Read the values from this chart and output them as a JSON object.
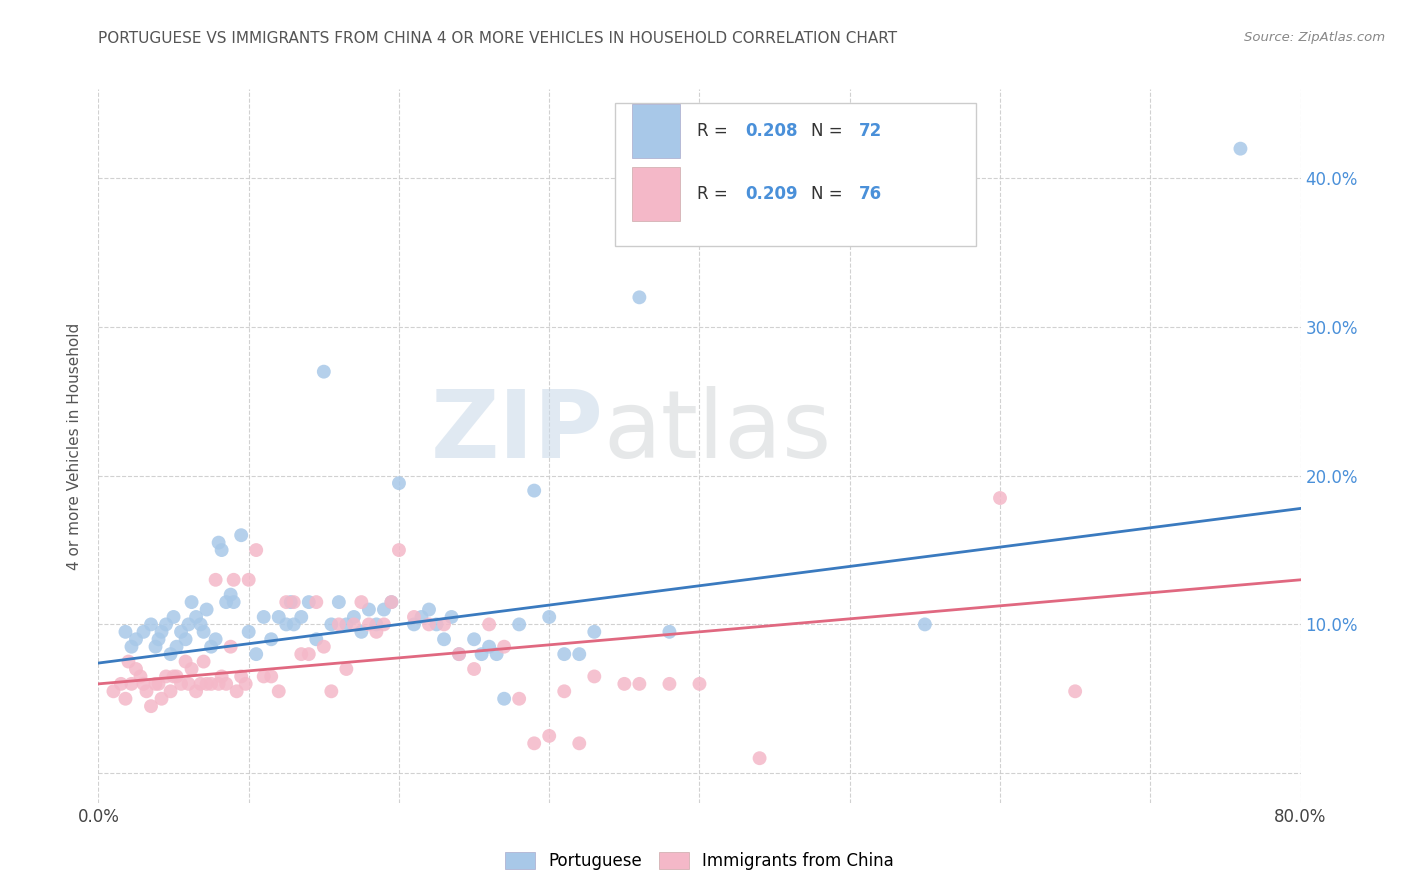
{
  "title": "PORTUGUESE VS IMMIGRANTS FROM CHINA 4 OR MORE VEHICLES IN HOUSEHOLD CORRELATION CHART",
  "source": "Source: ZipAtlas.com",
  "ylabel": "4 or more Vehicles in Household",
  "xlim": [
    0.0,
    0.8
  ],
  "ylim": [
    -0.02,
    0.46
  ],
  "xticks": [
    0.0,
    0.1,
    0.2,
    0.3,
    0.4,
    0.5,
    0.6,
    0.7,
    0.8
  ],
  "xticklabels": [
    "0.0%",
    "",
    "",
    "",
    "",
    "",
    "",
    "",
    "80.0%"
  ],
  "yticks": [
    0.0,
    0.1,
    0.2,
    0.3,
    0.4
  ],
  "yticklabels_right": [
    "",
    "10.0%",
    "20.0%",
    "30.0%",
    "40.0%"
  ],
  "legend1_label": "Portuguese",
  "legend2_label": "Immigrants from China",
  "R1": "0.208",
  "N1": "72",
  "R2": "0.209",
  "N2": "76",
  "blue_color": "#a8c8e8",
  "pink_color": "#f4b8c8",
  "blue_line_color": "#3a7abf",
  "pink_line_color": "#e06880",
  "blue_scatter": [
    [
      0.018,
      0.095
    ],
    [
      0.022,
      0.085
    ],
    [
      0.025,
      0.09
    ],
    [
      0.03,
      0.095
    ],
    [
      0.035,
      0.1
    ],
    [
      0.038,
      0.085
    ],
    [
      0.04,
      0.09
    ],
    [
      0.042,
      0.095
    ],
    [
      0.045,
      0.1
    ],
    [
      0.048,
      0.08
    ],
    [
      0.05,
      0.105
    ],
    [
      0.052,
      0.085
    ],
    [
      0.055,
      0.095
    ],
    [
      0.058,
      0.09
    ],
    [
      0.06,
      0.1
    ],
    [
      0.062,
      0.115
    ],
    [
      0.065,
      0.105
    ],
    [
      0.068,
      0.1
    ],
    [
      0.07,
      0.095
    ],
    [
      0.072,
      0.11
    ],
    [
      0.075,
      0.085
    ],
    [
      0.078,
      0.09
    ],
    [
      0.08,
      0.155
    ],
    [
      0.082,
      0.15
    ],
    [
      0.085,
      0.115
    ],
    [
      0.088,
      0.12
    ],
    [
      0.09,
      0.115
    ],
    [
      0.095,
      0.16
    ],
    [
      0.1,
      0.095
    ],
    [
      0.105,
      0.08
    ],
    [
      0.11,
      0.105
    ],
    [
      0.115,
      0.09
    ],
    [
      0.12,
      0.105
    ],
    [
      0.125,
      0.1
    ],
    [
      0.128,
      0.115
    ],
    [
      0.13,
      0.1
    ],
    [
      0.135,
      0.105
    ],
    [
      0.14,
      0.115
    ],
    [
      0.145,
      0.09
    ],
    [
      0.15,
      0.27
    ],
    [
      0.155,
      0.1
    ],
    [
      0.16,
      0.115
    ],
    [
      0.165,
      0.1
    ],
    [
      0.17,
      0.105
    ],
    [
      0.175,
      0.095
    ],
    [
      0.18,
      0.11
    ],
    [
      0.185,
      0.1
    ],
    [
      0.19,
      0.11
    ],
    [
      0.195,
      0.115
    ],
    [
      0.2,
      0.195
    ],
    [
      0.21,
      0.1
    ],
    [
      0.215,
      0.105
    ],
    [
      0.22,
      0.11
    ],
    [
      0.225,
      0.1
    ],
    [
      0.23,
      0.09
    ],
    [
      0.235,
      0.105
    ],
    [
      0.24,
      0.08
    ],
    [
      0.25,
      0.09
    ],
    [
      0.255,
      0.08
    ],
    [
      0.26,
      0.085
    ],
    [
      0.265,
      0.08
    ],
    [
      0.27,
      0.05
    ],
    [
      0.28,
      0.1
    ],
    [
      0.29,
      0.19
    ],
    [
      0.3,
      0.105
    ],
    [
      0.31,
      0.08
    ],
    [
      0.32,
      0.08
    ],
    [
      0.33,
      0.095
    ],
    [
      0.36,
      0.32
    ],
    [
      0.38,
      0.095
    ],
    [
      0.55,
      0.1
    ],
    [
      0.76,
      0.42
    ]
  ],
  "pink_scatter": [
    [
      0.01,
      0.055
    ],
    [
      0.015,
      0.06
    ],
    [
      0.018,
      0.05
    ],
    [
      0.02,
      0.075
    ],
    [
      0.022,
      0.06
    ],
    [
      0.025,
      0.07
    ],
    [
      0.028,
      0.065
    ],
    [
      0.03,
      0.06
    ],
    [
      0.032,
      0.055
    ],
    [
      0.035,
      0.045
    ],
    [
      0.038,
      0.06
    ],
    [
      0.04,
      0.06
    ],
    [
      0.042,
      0.05
    ],
    [
      0.045,
      0.065
    ],
    [
      0.048,
      0.055
    ],
    [
      0.05,
      0.065
    ],
    [
      0.052,
      0.065
    ],
    [
      0.055,
      0.06
    ],
    [
      0.058,
      0.075
    ],
    [
      0.06,
      0.06
    ],
    [
      0.062,
      0.07
    ],
    [
      0.065,
      0.055
    ],
    [
      0.068,
      0.06
    ],
    [
      0.07,
      0.075
    ],
    [
      0.072,
      0.06
    ],
    [
      0.075,
      0.06
    ],
    [
      0.078,
      0.13
    ],
    [
      0.08,
      0.06
    ],
    [
      0.082,
      0.065
    ],
    [
      0.085,
      0.06
    ],
    [
      0.088,
      0.085
    ],
    [
      0.09,
      0.13
    ],
    [
      0.092,
      0.055
    ],
    [
      0.095,
      0.065
    ],
    [
      0.098,
      0.06
    ],
    [
      0.1,
      0.13
    ],
    [
      0.105,
      0.15
    ],
    [
      0.11,
      0.065
    ],
    [
      0.115,
      0.065
    ],
    [
      0.12,
      0.055
    ],
    [
      0.125,
      0.115
    ],
    [
      0.13,
      0.115
    ],
    [
      0.135,
      0.08
    ],
    [
      0.14,
      0.08
    ],
    [
      0.145,
      0.115
    ],
    [
      0.15,
      0.085
    ],
    [
      0.155,
      0.055
    ],
    [
      0.16,
      0.1
    ],
    [
      0.165,
      0.07
    ],
    [
      0.17,
      0.1
    ],
    [
      0.175,
      0.115
    ],
    [
      0.18,
      0.1
    ],
    [
      0.185,
      0.095
    ],
    [
      0.19,
      0.1
    ],
    [
      0.195,
      0.115
    ],
    [
      0.2,
      0.15
    ],
    [
      0.21,
      0.105
    ],
    [
      0.22,
      0.1
    ],
    [
      0.23,
      0.1
    ],
    [
      0.24,
      0.08
    ],
    [
      0.25,
      0.07
    ],
    [
      0.26,
      0.1
    ],
    [
      0.27,
      0.085
    ],
    [
      0.28,
      0.05
    ],
    [
      0.29,
      0.02
    ],
    [
      0.3,
      0.025
    ],
    [
      0.31,
      0.055
    ],
    [
      0.32,
      0.02
    ],
    [
      0.33,
      0.065
    ],
    [
      0.35,
      0.06
    ],
    [
      0.36,
      0.06
    ],
    [
      0.38,
      0.06
    ],
    [
      0.4,
      0.06
    ],
    [
      0.44,
      0.01
    ],
    [
      0.6,
      0.185
    ],
    [
      0.65,
      0.055
    ]
  ],
  "blue_line": {
    "x0": 0.0,
    "x1": 0.8,
    "y0": 0.074,
    "y1": 0.178
  },
  "pink_line": {
    "x0": 0.0,
    "x1": 0.8,
    "y0": 0.06,
    "y1": 0.13
  },
  "watermark_zip": "ZIP",
  "watermark_atlas": "atlas",
  "background_color": "#ffffff",
  "grid_color": "#cccccc",
  "title_color": "#555555",
  "axis_tick_color": "#4a90d9",
  "legend_text_color": "#4a90d9",
  "legend_label_color": "#333333"
}
